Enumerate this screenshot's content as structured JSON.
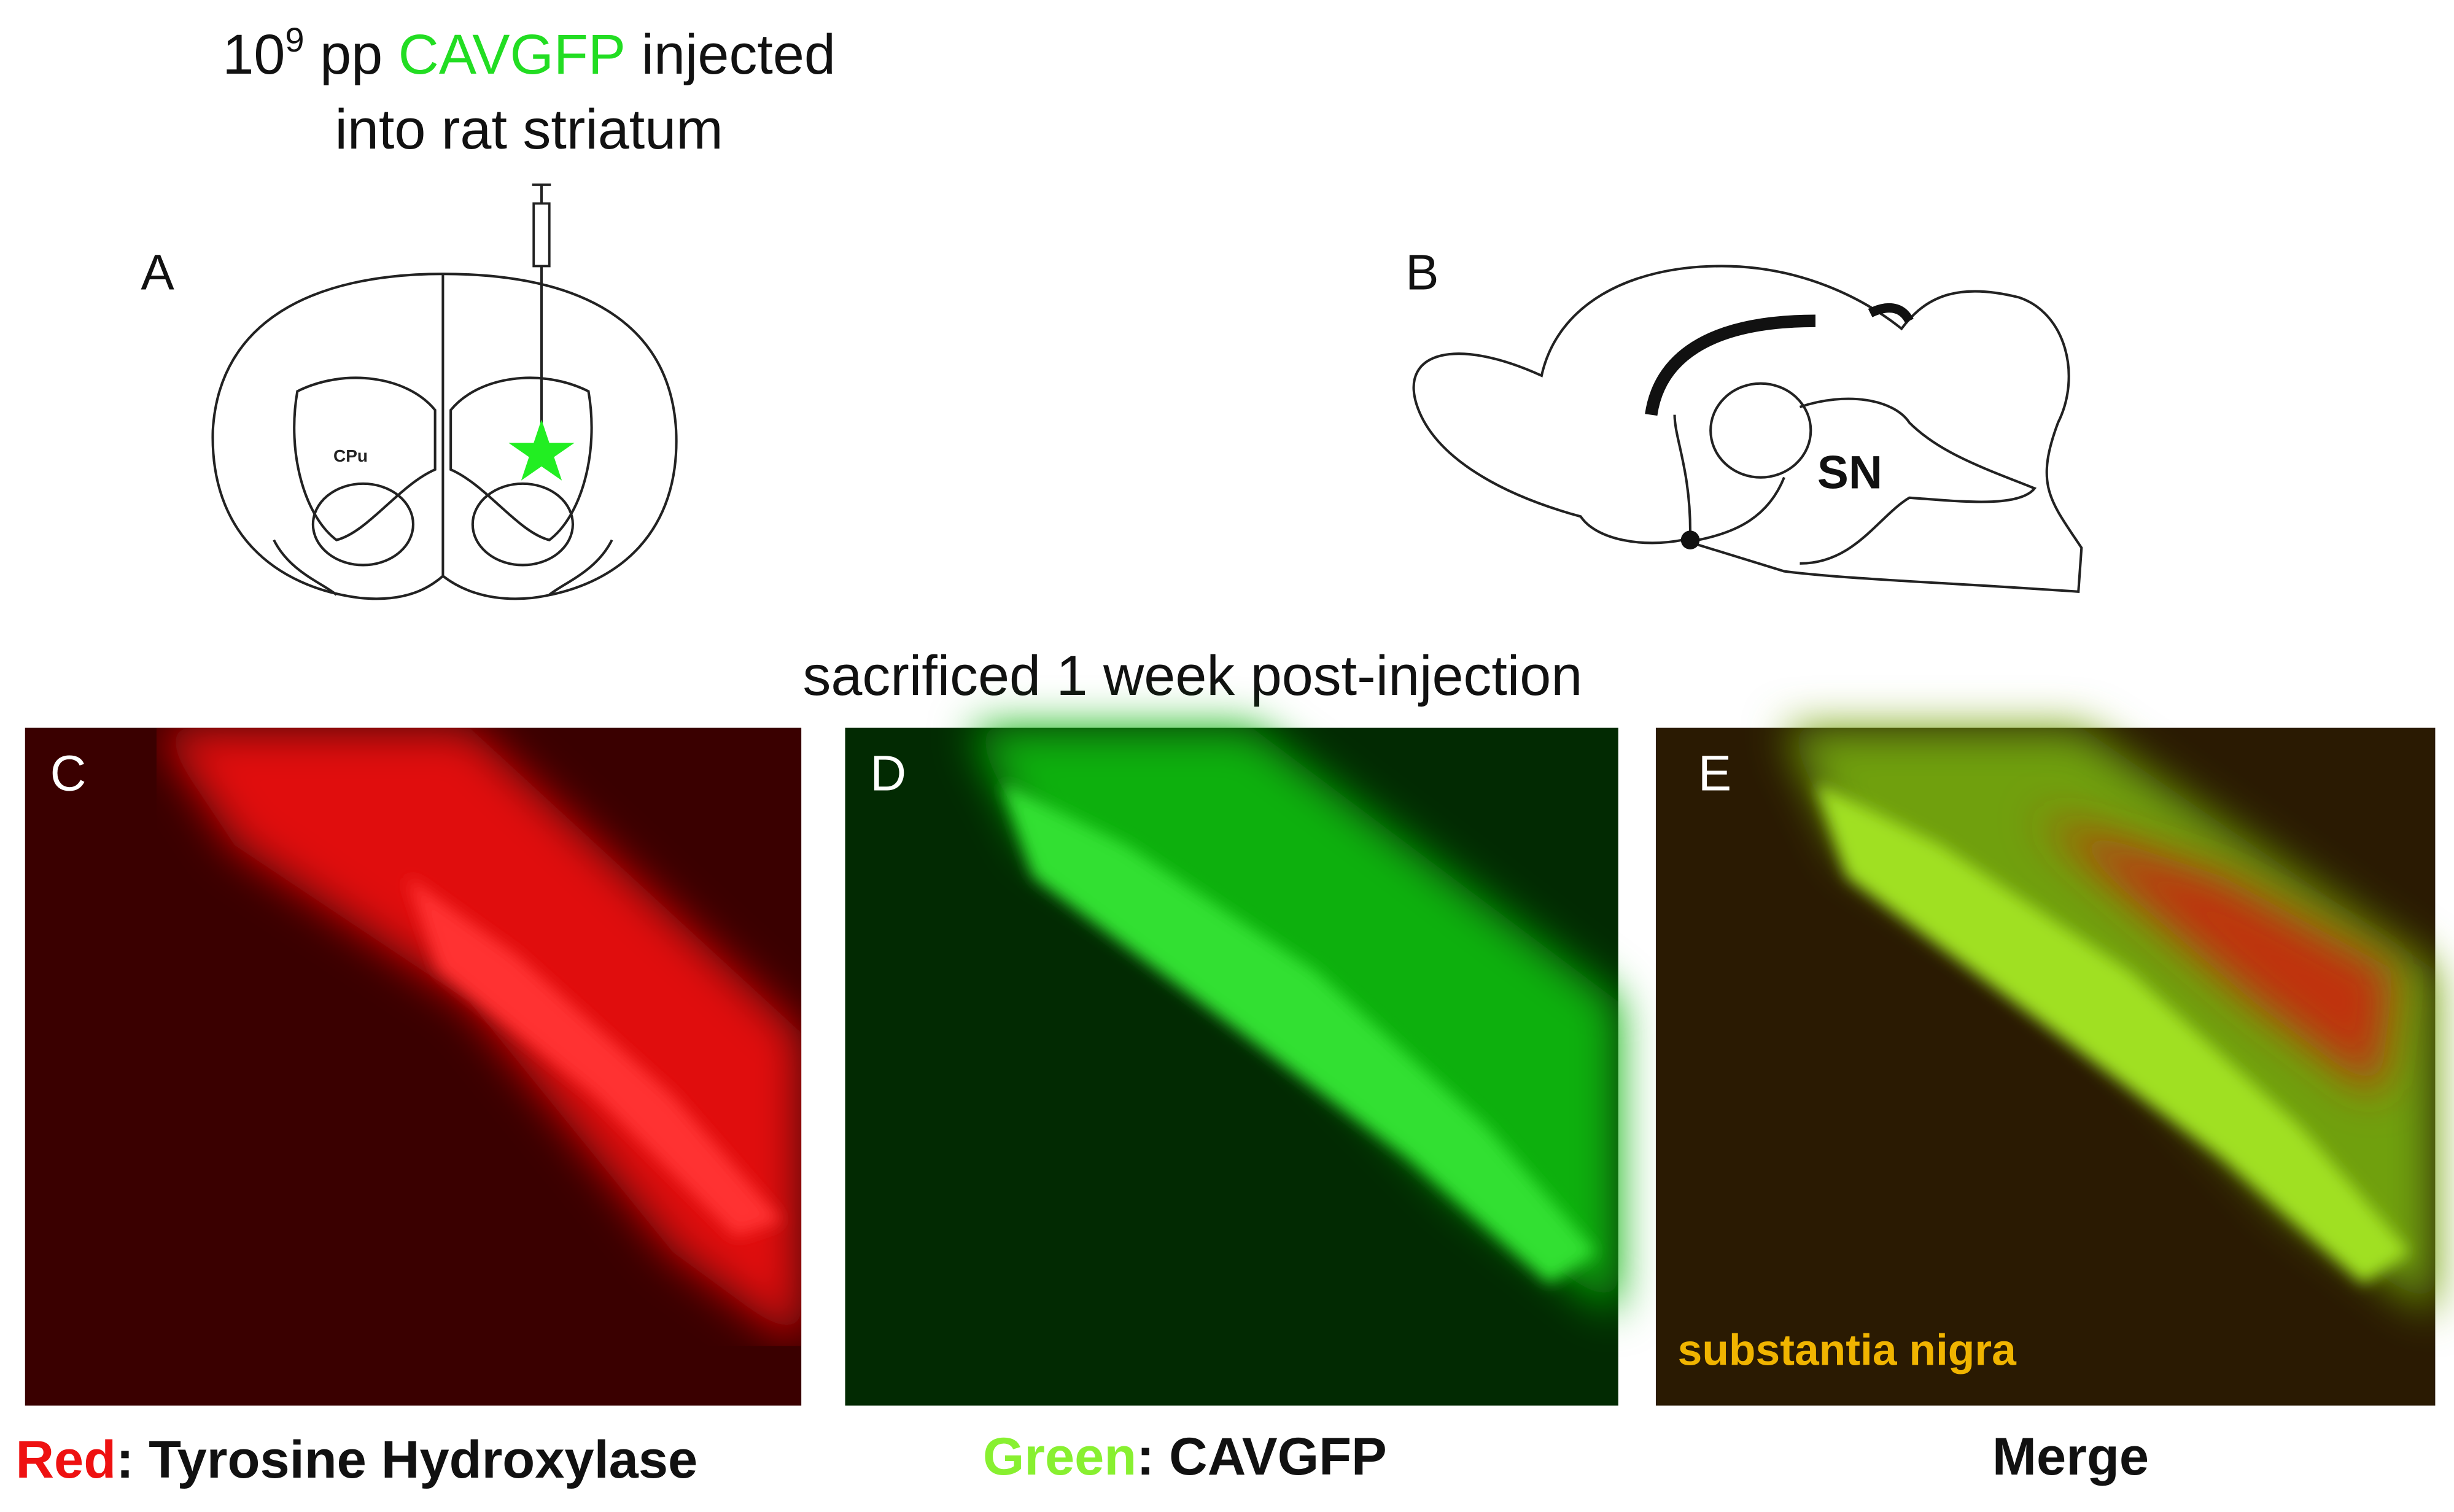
{
  "header": {
    "line1": {
      "base": "10",
      "exponent": "9",
      "unit": "pp",
      "agent": "CAVGFP",
      "verb": "injected"
    },
    "line2": "into rat striatum"
  },
  "panels": {
    "a": {
      "label": "A",
      "region": "CPu"
    },
    "b": {
      "label": "B",
      "region": "SN"
    },
    "timepoint": "sacrificed 1 week post-injection",
    "c": {
      "label": "C",
      "caption": {
        "color_word": "Red",
        "rest": ": Tyrosine Hydroxylase"
      }
    },
    "d": {
      "label": "D",
      "caption": {
        "color_word": "Green",
        "rest": ": CAVGFP"
      }
    },
    "e": {
      "label": "E",
      "annotation": "substantia nigra",
      "caption": "Merge"
    }
  }
}
